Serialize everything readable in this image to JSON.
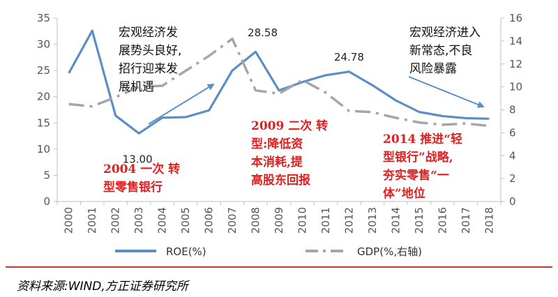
{
  "chart_data": {
    "type": "line",
    "categories": [
      "2000",
      "2001",
      "2002",
      "2003",
      "2004",
      "2005",
      "2006",
      "2007",
      "2008",
      "2009",
      "2010",
      "2011",
      "2012",
      "2013",
      "2014",
      "2015",
      "2016",
      "2017",
      "2018"
    ],
    "series": [
      {
        "name": "ROE(%)",
        "axis": "left",
        "color": "#5b8ec5",
        "style": "solid",
        "values": [
          24.5,
          32.6,
          16.4,
          13.0,
          16.0,
          16.1,
          17.4,
          25.0,
          28.58,
          21.2,
          22.8,
          24.1,
          24.78,
          22.2,
          19.3,
          17.1,
          16.3,
          15.9,
          15.8
        ]
      },
      {
        "name": "GDP(%,右轴)",
        "axis": "right",
        "color": "#a6a6a6",
        "style": "dashdot",
        "values": [
          8.5,
          8.3,
          9.1,
          10.0,
          10.1,
          11.4,
          12.7,
          14.2,
          9.7,
          9.4,
          10.6,
          9.5,
          7.9,
          7.8,
          7.3,
          6.9,
          6.7,
          6.8,
          6.6
        ]
      }
    ],
    "y_left": {
      "ylim": [
        0,
        35
      ],
      "ticks": [
        "0",
        "5",
        "10",
        "15",
        "20",
        "25",
        "30",
        "35"
      ]
    },
    "y_right": {
      "ylim": [
        0,
        16
      ],
      "ticks": [
        "0",
        "2",
        "4",
        "6",
        "8",
        "10",
        "12",
        "14",
        "16"
      ]
    },
    "data_labels": [
      {
        "series": 0,
        "index": 3,
        "text": "13.00"
      },
      {
        "series": 0,
        "index": 8,
        "text": "28.58"
      },
      {
        "series": 0,
        "index": 12,
        "text": "24.78"
      }
    ],
    "legend": {
      "placement": "bottom"
    },
    "grid": false,
    "annotations": {
      "phase1_black": [
        "宏观经济发",
        "展势头良好,",
        "招行迎来发",
        "展机遇"
      ],
      "phase2_black": [
        "宏观经济进入",
        "新常态,不良",
        "风险暴露"
      ],
      "red1": [
        "2004 一次 转",
        "型零售银行"
      ],
      "red2": [
        "2009 二次 转",
        "型:降低资",
        "本消耗,提",
        "高股东回报"
      ],
      "red3": [
        "2014 推进“轻",
        "型银行”战略,",
        "夯实零售“一",
        "体”地位"
      ]
    },
    "arrows_color": "#5b8ec5"
  },
  "source": "资料来源:WIND,方正证券研究所"
}
